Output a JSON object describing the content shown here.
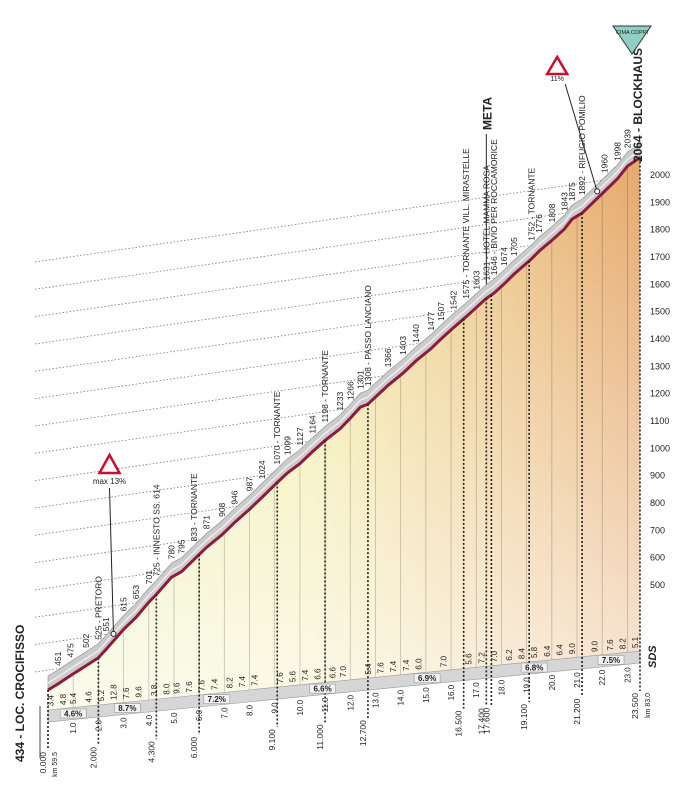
{
  "chart_data": {
    "type": "profile",
    "x": [
      0,
      0.4,
      0.9,
      1.5,
      2.0,
      2.3,
      3.0,
      3.5,
      4.0,
      4.3,
      4.9,
      5.3,
      5.8,
      6.3,
      6.9,
      7.4,
      8.0,
      8.5,
      9.1,
      9.5,
      10.0,
      10.5,
      11.0,
      11.6,
      12.0,
      12.4,
      12.7,
      13.5,
      14.1,
      14.6,
      15.2,
      15.6,
      16.1,
      16.6,
      17.0,
      17.4,
      17.7,
      18.1,
      18.5,
      19.2,
      19.5,
      20.0,
      20.5,
      20.8,
      21.2,
      22.1,
      22.6,
      23.0,
      23.5
    ],
    "values": [
      434,
      451,
      475,
      502,
      525,
      551,
      615,
      653,
      701,
      725,
      780,
      795,
      833,
      871,
      908,
      946,
      987,
      1024,
      1070,
      1099,
      1127,
      1164,
      1198,
      1233,
      1266,
      1301,
      1308,
      1366,
      1403,
      1440,
      1477,
      1507,
      1542,
      1575,
      1603,
      1631,
      1646,
      1674,
      1705,
      1752,
      1776,
      1808,
      1843,
      1875,
      1892,
      1960,
      1998,
      2039,
      2064
    ],
    "value_labels": [
      "434 - LOC. CROCIFISSO",
      "451",
      "475",
      "502",
      "525 - PRETORO",
      "551",
      "615",
      "653",
      "701",
      "725 - INNESTO SS. 614",
      "780",
      "795",
      "833 - TORNANTE",
      "871",
      "908",
      "946",
      "987",
      "1024",
      "1070 - TORNANTE",
      "1099",
      "1127",
      "1164",
      "1198 - TORNANTE",
      "1233",
      "1266",
      "1301",
      "1308 - PASSO LANCIANO",
      "1366",
      "1403",
      "1440",
      "1477",
      "1507",
      "1542",
      "1575 - TORNANTE VILL. MIRASTELLE",
      "1603",
      "1631 - HOTEL MAMMA ROSA",
      "1646 - BIVIO PER ROCCAMORICE",
      "1674",
      "1705",
      "1752 - TORNANTE",
      "1776",
      "1808",
      "1843",
      "1875",
      "1892 - RIFUGIO POMILIO",
      "1960",
      "1998",
      "2039",
      "2064 - BLOCKHAUS"
    ],
    "xlim": [
      0,
      23.5
    ],
    "ylim": [
      500,
      2000
    ],
    "yticks": [
      500,
      600,
      700,
      800,
      900,
      1000,
      1100,
      1200,
      1300,
      1400,
      1500,
      1600,
      1700,
      1800,
      1900,
      2000
    ],
    "xticks": [
      {
        "value": 1,
        "label": "1.0"
      },
      {
        "value": 2,
        "label": "2.0"
      },
      {
        "value": 3,
        "label": "3.0"
      },
      {
        "value": 4,
        "label": "4.0"
      },
      {
        "value": 5,
        "label": "5.0"
      },
      {
        "value": 6,
        "label": "6.0"
      },
      {
        "value": 7,
        "label": "7.0"
      },
      {
        "value": 8,
        "label": "8.0"
      },
      {
        "value": 9,
        "label": "9.0"
      },
      {
        "value": 10,
        "label": "10.0"
      },
      {
        "value": 11,
        "label": "11.0"
      },
      {
        "value": 12,
        "label": "12.0"
      },
      {
        "value": 13,
        "label": "13.0"
      },
      {
        "value": 14,
        "label": "14.0"
      },
      {
        "value": 15,
        "label": "15.0"
      },
      {
        "value": 16,
        "label": "16.0"
      },
      {
        "value": 17,
        "label": "17.0"
      },
      {
        "value": 18,
        "label": "18.0"
      },
      {
        "value": 19,
        "label": "19.0"
      },
      {
        "value": 20,
        "label": "20.0"
      },
      {
        "value": 21,
        "label": "21.0"
      },
      {
        "value": 22,
        "label": "22.0"
      },
      {
        "value": 23,
        "label": "23.0"
      }
    ],
    "km_marks": [
      {
        "value": 0,
        "label": "0.000"
      },
      {
        "value": 2,
        "label": "2.000"
      },
      {
        "value": 4.3,
        "label": "4.300"
      },
      {
        "value": 6,
        "label": "6.000"
      },
      {
        "value": 9.1,
        "label": "9.100"
      },
      {
        "value": 11,
        "label": "11.000"
      },
      {
        "value": 12.7,
        "label": "12.700"
      },
      {
        "value": 16.5,
        "label": "16.500"
      },
      {
        "value": 17.4,
        "label": "17.400"
      },
      {
        "value": 17.6,
        "label": "17.600"
      },
      {
        "value": 19.1,
        "label": "19.100"
      },
      {
        "value": 21.2,
        "label": "21.200"
      },
      {
        "value": 23.5,
        "label": "23.500"
      }
    ],
    "race_km_start": "km 59.5",
    "race_km_end": "km 83.0",
    "gradients": {
      "x": [
        0.3,
        0.8,
        1.2,
        1.8,
        2.3,
        2.8,
        3.3,
        3.8,
        4.4,
        4.9,
        5.3,
        5.8,
        6.3,
        6.8,
        7.4,
        7.9,
        8.4,
        9.4,
        9.9,
        10.4,
        10.9,
        11.5,
        11.9,
        12.9,
        13.4,
        13.9,
        14.4,
        14.9,
        15.9,
        16.9,
        17.4,
        17.9,
        18.5,
        19.0,
        19.5,
        20.0,
        20.5,
        21.0,
        21.9,
        22.5,
        23.0,
        23.5
      ],
      "values": [
        3.4,
        4.8,
        5.4,
        4.6,
        5.2,
        12.8,
        7.6,
        9.6,
        3.8,
        8.0,
        9.6,
        7.6,
        7.6,
        7.4,
        8.2,
        7.4,
        7.4,
        7.6,
        5.6,
        7.4,
        6.6,
        6.6,
        7.0,
        5.4,
        7.6,
        7.4,
        7.4,
        6.0,
        7.0,
        5.6,
        7.2,
        7.0,
        6.2,
        8.4,
        5.8,
        6.4,
        6.4,
        9.0,
        9.0,
        7.6,
        8.2,
        5.1
      ],
      "value_labels": [
        "3.4",
        "4.8",
        "5.4",
        "4.6",
        "5.2",
        "12.8",
        "7.6",
        "9.6",
        "3.8",
        "8.0",
        "9.6",
        "7.6",
        "7.6",
        "7.4",
        "8.2",
        "7.4",
        "7.4",
        "7.6",
        "5.6",
        "7.4",
        "6.6",
        "6.6",
        "7.0",
        "5.4",
        "7.6",
        "7.4",
        "7.4",
        "6.0",
        "7.0",
        "5.6",
        "7.2",
        "7.0",
        "6.2",
        "8.4",
        "5.8",
        "6.4",
        "6.4",
        "9.0",
        "9.0",
        "7.6",
        "8.2",
        "5.1"
      ]
    },
    "sections": [
      {
        "from": 0,
        "to": 2,
        "value": 4.6,
        "label": "4.6%"
      },
      {
        "from": 2,
        "to": 4.3,
        "value": 8.7,
        "label": "8.7%"
      },
      {
        "from": 4.3,
        "to": 9.1,
        "value": 7.2,
        "label": "7.2%"
      },
      {
        "from": 9.1,
        "to": 12.7,
        "value": 6.6,
        "label": "6.6%"
      },
      {
        "from": 12.7,
        "to": 17.4,
        "value": 6.9,
        "label": "6.9%"
      },
      {
        "from": 17.4,
        "to": 21.2,
        "value": 6.8,
        "label": "6.8%"
      },
      {
        "from": 21.2,
        "to": 23.5,
        "value": 7.5,
        "label": "7.5%"
      }
    ],
    "max_gradient": {
      "text": "max 13%",
      "x": 2.6
    },
    "steep_gradient": {
      "text": "11%",
      "x": 21.8
    },
    "meta": {
      "text": "META",
      "x": 17.4
    },
    "cima_coppi": {
      "text": "CIMA COPPI",
      "x": 23.5
    },
    "logo": "SDS"
  }
}
